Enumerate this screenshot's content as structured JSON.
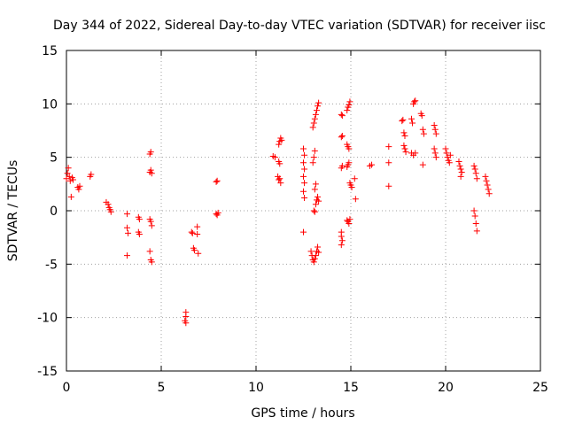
{
  "chart_data": {
    "type": "scatter",
    "title": "Day 344 of 2022, Sidereal Day-to-day VTEC variation (SDTVAR) for receiver iisc",
    "xlabel": "GPS time / hours",
    "ylabel": "SDTVAR / TECUs",
    "xlim": [
      0,
      25
    ],
    "ylim": [
      -15,
      15
    ],
    "xticks": [
      0,
      5,
      10,
      15,
      20,
      25
    ],
    "yticks": [
      -15,
      -10,
      -5,
      0,
      5,
      10,
      15
    ],
    "grid": true,
    "marker": "+",
    "color": "#ff0000",
    "series": [
      {
        "name": "SDTVAR",
        "points": [
          [
            0.0,
            3.0
          ],
          [
            0.05,
            3.5
          ],
          [
            0.1,
            4.0
          ],
          [
            0.15,
            3.2
          ],
          [
            0.2,
            2.8
          ],
          [
            0.25,
            1.3
          ],
          [
            0.3,
            3.1
          ],
          [
            0.35,
            2.9
          ],
          [
            0.6,
            2.2
          ],
          [
            0.65,
            2.0
          ],
          [
            0.7,
            2.3
          ],
          [
            1.25,
            3.2
          ],
          [
            1.3,
            3.4
          ],
          [
            2.1,
            0.8
          ],
          [
            2.2,
            0.6
          ],
          [
            2.25,
            0.3
          ],
          [
            2.3,
            0.1
          ],
          [
            2.35,
            -0.1
          ],
          [
            3.2,
            -0.3
          ],
          [
            3.2,
            -1.6
          ],
          [
            3.25,
            -2.1
          ],
          [
            3.2,
            -4.2
          ],
          [
            3.8,
            -0.6
          ],
          [
            3.85,
            -0.8
          ],
          [
            3.8,
            -2.0
          ],
          [
            3.85,
            -2.2
          ],
          [
            4.4,
            5.3
          ],
          [
            4.45,
            5.5
          ],
          [
            4.4,
            3.6
          ],
          [
            4.45,
            3.8
          ],
          [
            4.5,
            3.5
          ],
          [
            4.4,
            -0.8
          ],
          [
            4.45,
            -1.0
          ],
          [
            4.5,
            -1.4
          ],
          [
            4.4,
            -3.8
          ],
          [
            4.45,
            -4.6
          ],
          [
            4.5,
            -4.8
          ],
          [
            6.3,
            -9.5
          ],
          [
            6.3,
            -9.9
          ],
          [
            6.25,
            -10.3
          ],
          [
            6.3,
            -10.5
          ],
          [
            6.6,
            -2.0
          ],
          [
            6.65,
            -2.1
          ],
          [
            6.7,
            -3.5
          ],
          [
            6.75,
            -3.7
          ],
          [
            6.9,
            -1.5
          ],
          [
            6.9,
            -2.2
          ],
          [
            6.95,
            -4.0
          ],
          [
            7.9,
            2.7
          ],
          [
            7.95,
            2.8
          ],
          [
            7.9,
            -0.3
          ],
          [
            7.95,
            -0.4
          ],
          [
            8.0,
            -0.2
          ],
          [
            10.9,
            5.1
          ],
          [
            11.0,
            5.0
          ],
          [
            11.2,
            4.6
          ],
          [
            11.25,
            4.4
          ],
          [
            11.15,
            3.2
          ],
          [
            11.2,
            2.9
          ],
          [
            11.25,
            3.0
          ],
          [
            11.3,
            2.6
          ],
          [
            11.2,
            6.2
          ],
          [
            11.25,
            6.5
          ],
          [
            11.3,
            6.8
          ],
          [
            11.35,
            6.6
          ],
          [
            12.5,
            5.8
          ],
          [
            12.55,
            5.2
          ],
          [
            12.5,
            4.5
          ],
          [
            12.55,
            3.9
          ],
          [
            12.5,
            3.2
          ],
          [
            12.55,
            2.6
          ],
          [
            12.5,
            1.8
          ],
          [
            12.55,
            1.2
          ],
          [
            12.5,
            -2.0
          ],
          [
            12.9,
            -3.8
          ],
          [
            12.95,
            -4.2
          ],
          [
            13.0,
            -4.6
          ],
          [
            13.05,
            -4.8
          ],
          [
            13.1,
            -4.5
          ],
          [
            13.15,
            -4.2
          ],
          [
            13.2,
            -3.8
          ],
          [
            13.25,
            -3.4
          ],
          [
            13.3,
            -3.9
          ],
          [
            13.05,
            0.0
          ],
          [
            13.1,
            -0.1
          ],
          [
            13.15,
            0.6
          ],
          [
            13.2,
            1.0
          ],
          [
            13.25,
            1.3
          ],
          [
            13.3,
            0.9
          ],
          [
            13.1,
            2.0
          ],
          [
            13.15,
            2.5
          ],
          [
            13.0,
            4.5
          ],
          [
            13.05,
            5.0
          ],
          [
            13.1,
            5.6
          ],
          [
            13.0,
            7.8
          ],
          [
            13.05,
            8.2
          ],
          [
            13.1,
            8.6
          ],
          [
            13.15,
            9.0
          ],
          [
            13.2,
            9.4
          ],
          [
            13.25,
            9.8
          ],
          [
            13.3,
            10.1
          ],
          [
            14.5,
            -2.0
          ],
          [
            14.5,
            -2.4
          ],
          [
            14.55,
            -2.8
          ],
          [
            14.5,
            -3.2
          ],
          [
            14.5,
            4.0
          ],
          [
            14.55,
            4.2
          ],
          [
            14.8,
            4.1
          ],
          [
            14.85,
            4.3
          ],
          [
            14.9,
            4.5
          ],
          [
            14.5,
            6.9
          ],
          [
            14.55,
            7.0
          ],
          [
            14.5,
            9.0
          ],
          [
            14.55,
            8.9
          ],
          [
            14.8,
            9.4
          ],
          [
            14.85,
            9.7
          ],
          [
            14.9,
            9.9
          ],
          [
            14.95,
            10.2
          ],
          [
            14.8,
            6.2
          ],
          [
            14.85,
            6.0
          ],
          [
            14.9,
            5.8
          ],
          [
            14.8,
            -0.9
          ],
          [
            14.85,
            -1.0
          ],
          [
            14.9,
            -1.2
          ],
          [
            14.95,
            -0.8
          ],
          [
            14.95,
            2.6
          ],
          [
            15.0,
            2.4
          ],
          [
            15.05,
            2.2
          ],
          [
            15.2,
            3.0
          ],
          [
            15.25,
            1.1
          ],
          [
            16.0,
            4.2
          ],
          [
            16.1,
            4.3
          ],
          [
            17.0,
            6.0
          ],
          [
            17.0,
            4.5
          ],
          [
            17.0,
            2.3
          ],
          [
            17.7,
            8.4
          ],
          [
            17.75,
            8.5
          ],
          [
            17.8,
            7.3
          ],
          [
            17.85,
            7.0
          ],
          [
            17.8,
            6.1
          ],
          [
            17.85,
            5.8
          ],
          [
            17.9,
            5.5
          ],
          [
            18.2,
            8.6
          ],
          [
            18.25,
            8.2
          ],
          [
            18.3,
            10.0
          ],
          [
            18.35,
            10.2
          ],
          [
            18.4,
            10.3
          ],
          [
            18.2,
            5.4
          ],
          [
            18.3,
            5.2
          ],
          [
            18.4,
            5.4
          ],
          [
            18.7,
            9.1
          ],
          [
            18.75,
            8.9
          ],
          [
            18.8,
            7.6
          ],
          [
            18.85,
            7.2
          ],
          [
            18.8,
            4.3
          ],
          [
            19.4,
            8.0
          ],
          [
            19.45,
            7.6
          ],
          [
            19.5,
            7.2
          ],
          [
            19.4,
            5.8
          ],
          [
            19.45,
            5.4
          ],
          [
            19.5,
            5.0
          ],
          [
            20.0,
            5.8
          ],
          [
            20.05,
            5.4
          ],
          [
            20.1,
            5.0
          ],
          [
            20.15,
            4.7
          ],
          [
            20.2,
            4.5
          ],
          [
            20.25,
            5.2
          ],
          [
            20.7,
            4.6
          ],
          [
            20.75,
            4.2
          ],
          [
            20.8,
            3.9
          ],
          [
            20.85,
            3.6
          ],
          [
            20.8,
            3.2
          ],
          [
            21.5,
            4.2
          ],
          [
            21.55,
            3.9
          ],
          [
            21.6,
            3.5
          ],
          [
            21.65,
            3.0
          ],
          [
            21.5,
            0.0
          ],
          [
            21.55,
            -0.5
          ],
          [
            21.6,
            -1.2
          ],
          [
            21.65,
            -1.9
          ],
          [
            22.1,
            3.2
          ],
          [
            22.15,
            2.8
          ],
          [
            22.2,
            2.4
          ],
          [
            22.25,
            2.0
          ],
          [
            22.3,
            1.6
          ]
        ]
      }
    ]
  }
}
